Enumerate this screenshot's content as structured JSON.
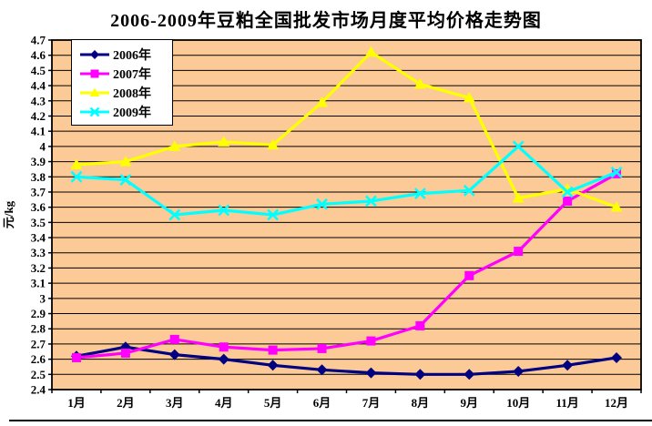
{
  "title": "2006-2009年豆粕全国批发市场月度平均价格走势图",
  "chart_data": {
    "type": "line",
    "title": "2006-2009年豆粕全国批发市场月度平均价格走势图",
    "xlabel": "",
    "ylabel": "元/kg",
    "ylim": [
      2.4,
      4.7
    ],
    "ytick_step": 0.1,
    "grid": "horizontal",
    "grid_color": "#000000",
    "plot_bg": "#FCCA96",
    "legend_position": "top-left-inside",
    "categories": [
      "1月",
      "2月",
      "3月",
      "4月",
      "5月",
      "6月",
      "7月",
      "8月",
      "9月",
      "10月",
      "11月",
      "12月"
    ],
    "series": [
      {
        "name": "2006年",
        "color": "#000080",
        "marker": "diamond",
        "values": [
          2.62,
          2.68,
          2.63,
          2.6,
          2.56,
          2.53,
          2.51,
          2.5,
          2.5,
          2.52,
          2.56,
          2.61
        ]
      },
      {
        "name": "2007年",
        "color": "#FF00FF",
        "marker": "square",
        "values": [
          2.61,
          2.64,
          2.73,
          2.68,
          2.66,
          2.67,
          2.72,
          2.82,
          3.15,
          3.31,
          3.64,
          3.82
        ]
      },
      {
        "name": "2008年",
        "color": "#FFFF00",
        "marker": "triangle",
        "values": [
          3.88,
          3.9,
          4.0,
          4.03,
          4.01,
          4.29,
          4.62,
          4.41,
          4.32,
          3.66,
          3.72,
          3.6
        ]
      },
      {
        "name": "2009年",
        "color": "#00FFFF",
        "marker": "x",
        "values": [
          3.8,
          3.78,
          3.55,
          3.58,
          3.55,
          3.62,
          3.64,
          3.69,
          3.71,
          4.0,
          3.7,
          3.83
        ]
      }
    ]
  }
}
